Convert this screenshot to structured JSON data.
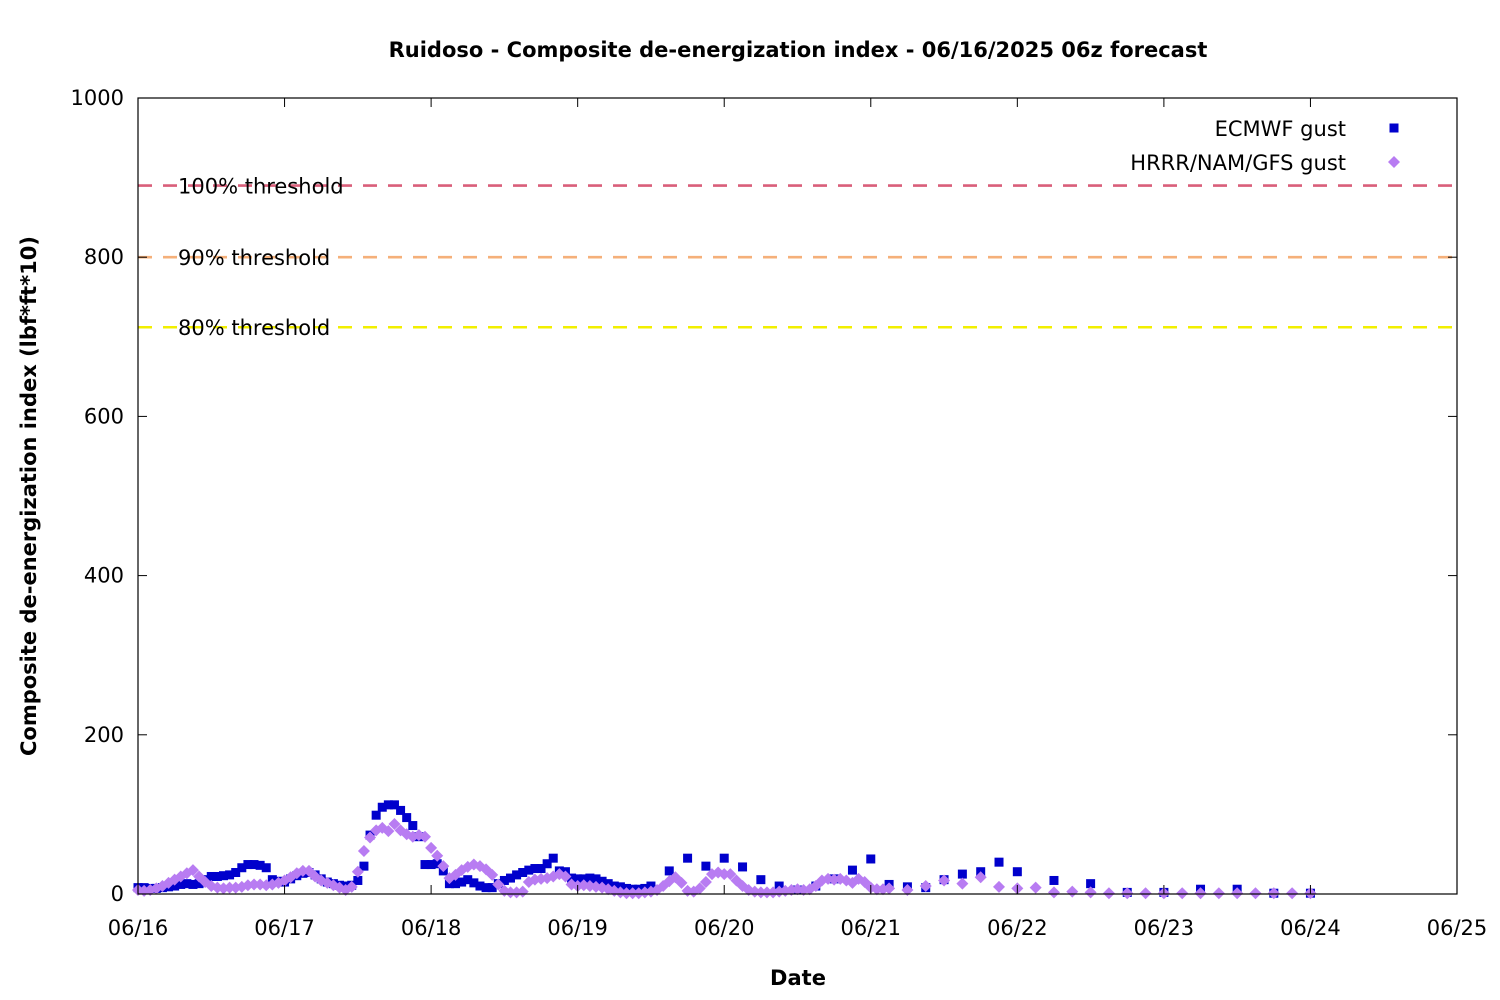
{
  "chart_data": {
    "type": "scatter",
    "title": "Ruidoso - Composite de-energization index - 06/16/2025 06z forecast",
    "xlabel": "Date",
    "ylabel": "Composite de-energization index (lbf*ft*10)",
    "xlim": [
      "2025-06-16T00:00",
      "2025-06-25T00:00"
    ],
    "ylim": [
      0,
      1000
    ],
    "x_ticks": [
      "06/16",
      "06/17",
      "06/18",
      "06/19",
      "06/20",
      "06/21",
      "06/22",
      "06/23",
      "06/24",
      "06/25"
    ],
    "y_ticks": [
      "0",
      "200",
      "400",
      "600",
      "800",
      "1000"
    ],
    "grid": false,
    "legend_position": "top-right",
    "thresholds": [
      {
        "label": "100% threshold",
        "value": 890,
        "color": "#d95f7a"
      },
      {
        "label": "90% threshold",
        "value": 800,
        "color": "#f5b07a"
      },
      {
        "label": "80% threshold",
        "value": 712,
        "color": "#f2ef00"
      }
    ],
    "series": [
      {
        "name": "ECMWF gust",
        "color": "#0000cc",
        "marker": "square",
        "points": [
          [
            "2025-06-16T00:00",
            8
          ],
          [
            "2025-06-16T01:00",
            8
          ],
          [
            "2025-06-16T02:00",
            7
          ],
          [
            "2025-06-16T03:00",
            7
          ],
          [
            "2025-06-16T04:00",
            8
          ],
          [
            "2025-06-16T05:00",
            9
          ],
          [
            "2025-06-16T06:00",
            10
          ],
          [
            "2025-06-16T07:00",
            12
          ],
          [
            "2025-06-16T08:00",
            13
          ],
          [
            "2025-06-16T09:00",
            12
          ],
          [
            "2025-06-16T10:00",
            13
          ],
          [
            "2025-06-16T11:00",
            18
          ],
          [
            "2025-06-16T12:00",
            22
          ],
          [
            "2025-06-16T13:00",
            22
          ],
          [
            "2025-06-16T14:00",
            23
          ],
          [
            "2025-06-16T15:00",
            24
          ],
          [
            "2025-06-16T16:00",
            27
          ],
          [
            "2025-06-16T17:00",
            33
          ],
          [
            "2025-06-16T18:00",
            37
          ],
          [
            "2025-06-16T19:00",
            37
          ],
          [
            "2025-06-16T20:00",
            36
          ],
          [
            "2025-06-16T21:00",
            33
          ],
          [
            "2025-06-16T22:00",
            18
          ],
          [
            "2025-06-16T23:00",
            16
          ],
          [
            "2025-06-17T00:00",
            15
          ],
          [
            "2025-06-17T01:00",
            19
          ],
          [
            "2025-06-17T02:00",
            23
          ],
          [
            "2025-06-17T03:00",
            26
          ],
          [
            "2025-06-17T04:00",
            27
          ],
          [
            "2025-06-17T05:00",
            24
          ],
          [
            "2025-06-17T06:00",
            19
          ],
          [
            "2025-06-17T07:00",
            15
          ],
          [
            "2025-06-17T08:00",
            13
          ],
          [
            "2025-06-17T09:00",
            11
          ],
          [
            "2025-06-17T10:00",
            10
          ],
          [
            "2025-06-17T11:00",
            11
          ],
          [
            "2025-06-17T12:00",
            17
          ],
          [
            "2025-06-17T13:00",
            35
          ],
          [
            "2025-06-17T14:00",
            74
          ],
          [
            "2025-06-17T15:00",
            99
          ],
          [
            "2025-06-17T16:00",
            109
          ],
          [
            "2025-06-17T17:00",
            112
          ],
          [
            "2025-06-17T18:00",
            112
          ],
          [
            "2025-06-17T19:00",
            105
          ],
          [
            "2025-06-17T20:00",
            96
          ],
          [
            "2025-06-17T21:00",
            86
          ],
          [
            "2025-06-17T22:00",
            72
          ],
          [
            "2025-06-17T23:00",
            37
          ],
          [
            "2025-06-18T00:00",
            37
          ],
          [
            "2025-06-18T01:00",
            38
          ],
          [
            "2025-06-18T02:00",
            29
          ],
          [
            "2025-06-18T03:00",
            13
          ],
          [
            "2025-06-18T04:00",
            13
          ],
          [
            "2025-06-18T05:00",
            15
          ],
          [
            "2025-06-18T06:00",
            18
          ],
          [
            "2025-06-18T07:00",
            14
          ],
          [
            "2025-06-18T08:00",
            10
          ],
          [
            "2025-06-18T09:00",
            8
          ],
          [
            "2025-06-18T10:00",
            8
          ],
          [
            "2025-06-18T11:00",
            13
          ],
          [
            "2025-06-18T12:00",
            17
          ],
          [
            "2025-06-18T13:00",
            20
          ],
          [
            "2025-06-18T14:00",
            24
          ],
          [
            "2025-06-18T15:00",
            27
          ],
          [
            "2025-06-18T16:00",
            30
          ],
          [
            "2025-06-18T17:00",
            32
          ],
          [
            "2025-06-18T18:00",
            32
          ],
          [
            "2025-06-18T19:00",
            38
          ],
          [
            "2025-06-18T20:00",
            45
          ],
          [
            "2025-06-18T21:00",
            29
          ],
          [
            "2025-06-18T22:00",
            28
          ],
          [
            "2025-06-18T23:00",
            20
          ],
          [
            "2025-06-19T00:00",
            19
          ],
          [
            "2025-06-19T01:00",
            19
          ],
          [
            "2025-06-19T02:00",
            20
          ],
          [
            "2025-06-19T03:00",
            19
          ],
          [
            "2025-06-19T04:00",
            16
          ],
          [
            "2025-06-19T05:00",
            13
          ],
          [
            "2025-06-19T06:00",
            10
          ],
          [
            "2025-06-19T07:00",
            9
          ],
          [
            "2025-06-19T08:00",
            7
          ],
          [
            "2025-06-19T09:00",
            6
          ],
          [
            "2025-06-19T10:00",
            6
          ],
          [
            "2025-06-19T11:00",
            7
          ],
          [
            "2025-06-19T12:00",
            10
          ],
          [
            "2025-06-19T15:00",
            29
          ],
          [
            "2025-06-19T18:00",
            45
          ],
          [
            "2025-06-19T21:00",
            35
          ],
          [
            "2025-06-20T00:00",
            45
          ],
          [
            "2025-06-20T03:00",
            34
          ],
          [
            "2025-06-20T06:00",
            18
          ],
          [
            "2025-06-20T09:00",
            10
          ],
          [
            "2025-06-20T12:00",
            5
          ],
          [
            "2025-06-20T15:00",
            10
          ],
          [
            "2025-06-20T18:00",
            19
          ],
          [
            "2025-06-20T21:00",
            30
          ],
          [
            "2025-06-21T00:00",
            44
          ],
          [
            "2025-06-21T03:00",
            12
          ],
          [
            "2025-06-21T06:00",
            9
          ],
          [
            "2025-06-21T09:00",
            8
          ],
          [
            "2025-06-21T12:00",
            18
          ],
          [
            "2025-06-21T15:00",
            25
          ],
          [
            "2025-06-21T18:00",
            28
          ],
          [
            "2025-06-21T21:00",
            40
          ],
          [
            "2025-06-22T00:00",
            28
          ],
          [
            "2025-06-22T06:00",
            17
          ],
          [
            "2025-06-22T12:00",
            13
          ],
          [
            "2025-06-22T18:00",
            2
          ],
          [
            "2025-06-23T00:00",
            2
          ],
          [
            "2025-06-23T06:00",
            6
          ],
          [
            "2025-06-23T12:00",
            6
          ],
          [
            "2025-06-23T18:00",
            1
          ],
          [
            "2025-06-24T00:00",
            1
          ]
        ]
      },
      {
        "name": "HRRR/NAM/GFS gust",
        "color": "#b87cf2",
        "marker": "diamond",
        "points": [
          [
            "2025-06-16T00:00",
            5
          ],
          [
            "2025-06-16T01:00",
            4
          ],
          [
            "2025-06-16T02:00",
            5
          ],
          [
            "2025-06-16T03:00",
            7
          ],
          [
            "2025-06-16T04:00",
            10
          ],
          [
            "2025-06-16T05:00",
            14
          ],
          [
            "2025-06-16T06:00",
            18
          ],
          [
            "2025-06-16T07:00",
            22
          ],
          [
            "2025-06-16T08:00",
            26
          ],
          [
            "2025-06-16T09:00",
            30
          ],
          [
            "2025-06-16T10:00",
            22
          ],
          [
            "2025-06-16T11:00",
            15
          ],
          [
            "2025-06-16T12:00",
            10
          ],
          [
            "2025-06-16T13:00",
            8
          ],
          [
            "2025-06-16T14:00",
            7
          ],
          [
            "2025-06-16T15:00",
            8
          ],
          [
            "2025-06-16T16:00",
            8
          ],
          [
            "2025-06-16T17:00",
            9
          ],
          [
            "2025-06-16T18:00",
            11
          ],
          [
            "2025-06-16T19:00",
            12
          ],
          [
            "2025-06-16T20:00",
            12
          ],
          [
            "2025-06-16T21:00",
            11
          ],
          [
            "2025-06-16T22:00",
            12
          ],
          [
            "2025-06-16T23:00",
            14
          ],
          [
            "2025-06-17T00:00",
            17
          ],
          [
            "2025-06-17T01:00",
            21
          ],
          [
            "2025-06-17T02:00",
            26
          ],
          [
            "2025-06-17T03:00",
            29
          ],
          [
            "2025-06-17T04:00",
            29
          ],
          [
            "2025-06-17T05:00",
            22
          ],
          [
            "2025-06-17T06:00",
            17
          ],
          [
            "2025-06-17T07:00",
            14
          ],
          [
            "2025-06-17T08:00",
            11
          ],
          [
            "2025-06-17T09:00",
            8
          ],
          [
            "2025-06-17T10:00",
            5
          ],
          [
            "2025-06-17T11:00",
            9
          ],
          [
            "2025-06-17T12:00",
            28
          ],
          [
            "2025-06-17T13:00",
            54
          ],
          [
            "2025-06-17T14:00",
            71
          ],
          [
            "2025-06-17T15:00",
            80
          ],
          [
            "2025-06-17T16:00",
            83
          ],
          [
            "2025-06-17T17:00",
            79
          ],
          [
            "2025-06-17T18:00",
            88
          ],
          [
            "2025-06-17T19:00",
            80
          ],
          [
            "2025-06-17T20:00",
            75
          ],
          [
            "2025-06-17T21:00",
            72
          ],
          [
            "2025-06-17T22:00",
            74
          ],
          [
            "2025-06-17T23:00",
            72
          ],
          [
            "2025-06-18T00:00",
            58
          ],
          [
            "2025-06-18T01:00",
            48
          ],
          [
            "2025-06-18T02:00",
            35
          ],
          [
            "2025-06-18T03:00",
            20
          ],
          [
            "2025-06-18T04:00",
            24
          ],
          [
            "2025-06-18T05:00",
            30
          ],
          [
            "2025-06-18T06:00",
            34
          ],
          [
            "2025-06-18T07:00",
            37
          ],
          [
            "2025-06-18T08:00",
            35
          ],
          [
            "2025-06-18T09:00",
            31
          ],
          [
            "2025-06-18T10:00",
            24
          ],
          [
            "2025-06-18T11:00",
            12
          ],
          [
            "2025-06-18T12:00",
            4
          ],
          [
            "2025-06-18T13:00",
            2
          ],
          [
            "2025-06-18T14:00",
            2
          ],
          [
            "2025-06-18T15:00",
            3
          ],
          [
            "2025-06-18T16:00",
            15
          ],
          [
            "2025-06-18T17:00",
            18
          ],
          [
            "2025-06-18T18:00",
            19
          ],
          [
            "2025-06-18T19:00",
            20
          ],
          [
            "2025-06-18T20:00",
            22
          ],
          [
            "2025-06-18T21:00",
            25
          ],
          [
            "2025-06-18T22:00",
            22
          ],
          [
            "2025-06-18T23:00",
            12
          ],
          [
            "2025-06-19T00:00",
            10
          ],
          [
            "2025-06-19T01:00",
            11
          ],
          [
            "2025-06-19T02:00",
            10
          ],
          [
            "2025-06-19T03:00",
            9
          ],
          [
            "2025-06-19T04:00",
            8
          ],
          [
            "2025-06-19T05:00",
            6
          ],
          [
            "2025-06-19T06:00",
            4
          ],
          [
            "2025-06-19T07:00",
            2
          ],
          [
            "2025-06-19T08:00",
            1
          ],
          [
            "2025-06-19T09:00",
            1
          ],
          [
            "2025-06-19T10:00",
            1
          ],
          [
            "2025-06-19T11:00",
            2
          ],
          [
            "2025-06-19T12:00",
            3
          ],
          [
            "2025-06-19T13:00",
            5
          ],
          [
            "2025-06-19T14:00",
            10
          ],
          [
            "2025-06-19T15:00",
            16
          ],
          [
            "2025-06-19T16:00",
            21
          ],
          [
            "2025-06-19T17:00",
            14
          ],
          [
            "2025-06-19T18:00",
            4
          ],
          [
            "2025-06-19T19:00",
            3
          ],
          [
            "2025-06-19T20:00",
            7
          ],
          [
            "2025-06-19T21:00",
            15
          ],
          [
            "2025-06-19T22:00",
            25
          ],
          [
            "2025-06-19T23:00",
            27
          ],
          [
            "2025-06-20T00:00",
            25
          ],
          [
            "2025-06-20T01:00",
            25
          ],
          [
            "2025-06-20T02:00",
            17
          ],
          [
            "2025-06-20T03:00",
            10
          ],
          [
            "2025-06-20T04:00",
            5
          ],
          [
            "2025-06-20T05:00",
            3
          ],
          [
            "2025-06-20T06:00",
            2
          ],
          [
            "2025-06-20T07:00",
            2
          ],
          [
            "2025-06-20T08:00",
            2
          ],
          [
            "2025-06-20T09:00",
            3
          ],
          [
            "2025-06-20T10:00",
            4
          ],
          [
            "2025-06-20T11:00",
            5
          ],
          [
            "2025-06-20T12:00",
            6
          ],
          [
            "2025-06-20T13:00",
            5
          ],
          [
            "2025-06-20T14:00",
            6
          ],
          [
            "2025-06-20T15:00",
            10
          ],
          [
            "2025-06-20T16:00",
            17
          ],
          [
            "2025-06-20T17:00",
            19
          ],
          [
            "2025-06-20T18:00",
            18
          ],
          [
            "2025-06-20T19:00",
            19
          ],
          [
            "2025-06-20T20:00",
            17
          ],
          [
            "2025-06-20T21:00",
            14
          ],
          [
            "2025-06-20T22:00",
            19
          ],
          [
            "2025-06-20T23:00",
            15
          ],
          [
            "2025-06-21T00:00",
            8
          ],
          [
            "2025-06-21T01:00",
            6
          ],
          [
            "2025-06-21T02:00",
            6
          ],
          [
            "2025-06-21T03:00",
            7
          ],
          [
            "2025-06-21T06:00",
            5
          ],
          [
            "2025-06-21T09:00",
            10
          ],
          [
            "2025-06-21T12:00",
            17
          ],
          [
            "2025-06-21T15:00",
            13
          ],
          [
            "2025-06-21T18:00",
            21
          ],
          [
            "2025-06-21T21:00",
            9
          ],
          [
            "2025-06-22T00:00",
            7
          ],
          [
            "2025-06-22T03:00",
            8
          ],
          [
            "2025-06-22T06:00",
            2
          ],
          [
            "2025-06-22T09:00",
            3
          ],
          [
            "2025-06-22T12:00",
            2
          ],
          [
            "2025-06-22T15:00",
            1
          ],
          [
            "2025-06-22T18:00",
            1
          ],
          [
            "2025-06-22T21:00",
            1
          ],
          [
            "2025-06-23T00:00",
            1
          ],
          [
            "2025-06-23T03:00",
            1
          ],
          [
            "2025-06-23T06:00",
            1
          ],
          [
            "2025-06-23T09:00",
            1
          ],
          [
            "2025-06-23T12:00",
            1
          ],
          [
            "2025-06-23T15:00",
            1
          ],
          [
            "2025-06-23T18:00",
            1
          ],
          [
            "2025-06-23T21:00",
            1
          ],
          [
            "2025-06-24T00:00",
            1
          ]
        ]
      }
    ]
  }
}
